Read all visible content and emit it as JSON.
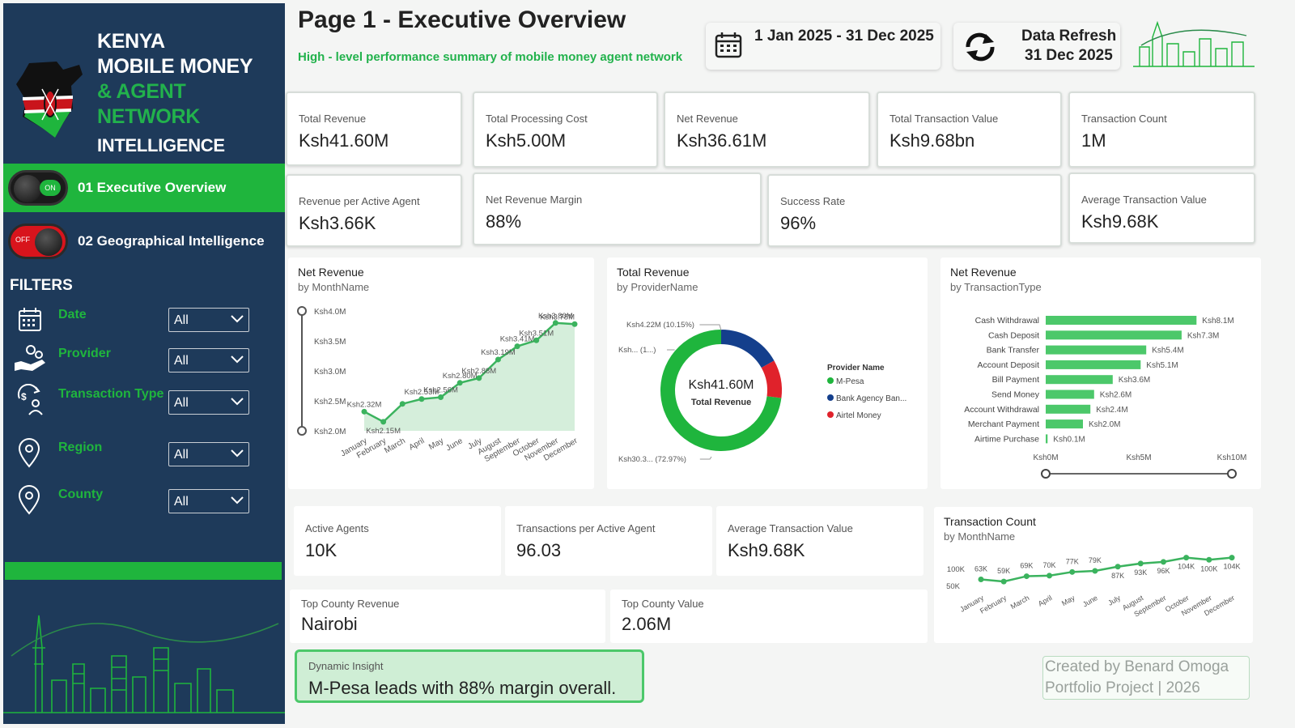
{
  "brand": {
    "line1": "KENYA",
    "line2": "MOBILE MONEY",
    "line3": "& AGENT NETWORK",
    "line4": "INTELLIGENCE"
  },
  "nav": [
    {
      "label": "01  Executive Overview",
      "state": "ON"
    },
    {
      "label": "02  Geographical Intelligence",
      "state": "OFF"
    }
  ],
  "filters": {
    "title": "FILTERS",
    "items": [
      {
        "name": "Date",
        "value": "All",
        "icon": "calendar-icon"
      },
      {
        "name": "Provider",
        "value": "All",
        "icon": "hand-coins-icon"
      },
      {
        "name": "Transaction Type",
        "value": "All",
        "icon": "exchange-person-icon"
      },
      {
        "name": "Region",
        "value": "All",
        "icon": "location-pin-icon"
      },
      {
        "name": "County",
        "value": "All",
        "icon": "location-pin-icon"
      }
    ]
  },
  "header": {
    "title": "Page 1 - Executive Overview",
    "subtitle": "High - level performance summary of mobile money agent network",
    "date_range": "1 Jan 2025 - 31 Dec 2025",
    "refresh_label": "Data Refresh",
    "refresh_date": "31 Dec 2025"
  },
  "kpis_row1": [
    {
      "label": "Total Revenue",
      "value": "Ksh41.60M"
    },
    {
      "label": "Total Processing Cost",
      "value": "Ksh5.00M"
    },
    {
      "label": "Net Revenue",
      "value": "Ksh36.61M"
    },
    {
      "label": "Total Transaction Value",
      "value": "Ksh9.68bn"
    },
    {
      "label": "Transaction Count",
      "value": "1M"
    }
  ],
  "kpis_row2": [
    {
      "label": "Revenue per Active Agent",
      "value": "Ksh3.66K"
    },
    {
      "label": "Net Revenue Margin",
      "value": "88%"
    },
    {
      "label": "Success Rate",
      "value": "96%"
    },
    {
      "label": "Average Transaction Value",
      "value": "Ksh9.68K"
    }
  ],
  "kpis_row3": [
    {
      "label": "Active Agents",
      "value": "10K"
    },
    {
      "label": "Transactions per Active Agent",
      "value": "96.03"
    },
    {
      "label": "Average Transaction Value",
      "value": "Ksh9.68K"
    }
  ],
  "kpis_row4": [
    {
      "label": "Top County Revenue",
      "value": "Nairobi"
    },
    {
      "label": "Top County Value",
      "value": "2.06M"
    }
  ],
  "insight": {
    "label": "Dynamic Insight",
    "text": "M-Pesa leads with 88% margin overall."
  },
  "credit": {
    "line1": "Created by Benard Omoga",
    "line2": "Portfolio Project | 2026"
  },
  "colors": {
    "green": "#1fb53d",
    "navy": "#1e3a5a",
    "blue": "#143f8c",
    "red": "#e0222b"
  },
  "chart_data": [
    {
      "type": "area",
      "title": "Net Revenue",
      "subtitle": "by MonthName",
      "categories": [
        "January",
        "February",
        "March",
        "April",
        "May",
        "June",
        "July",
        "August",
        "September",
        "October",
        "November",
        "December"
      ],
      "values": [
        2.32,
        2.15,
        2.45,
        2.53,
        2.56,
        2.8,
        2.88,
        3.19,
        3.41,
        3.51,
        3.8,
        3.78
      ],
      "value_labels": [
        "Ksh2.32M",
        "Ksh2.15M",
        "",
        "Ksh2.53M",
        "Ksh2.56M",
        "Ksh2.80M",
        "Ksh2.88M",
        "Ksh3.19M",
        "Ksh3.41M",
        "Ksh3.51M",
        "Ksh3.80M",
        "Ksh3.78M"
      ],
      "y_ticks": [
        "Ksh2.0M",
        "Ksh2.5M",
        "Ksh3.0M",
        "Ksh3.5M",
        "Ksh4.0M"
      ],
      "ylim": [
        2.0,
        4.0
      ]
    },
    {
      "type": "pie",
      "title": "Total Revenue",
      "subtitle": "by ProviderName",
      "center_value": "Ksh41.60M",
      "center_label": "Total Revenue",
      "legend_title": "Provider Name",
      "slices": [
        {
          "name": "M-Pesa",
          "value": 72.97,
          "label": "Ksh30.3... (72.97%)"
        },
        {
          "name": "Bank Agency Ban...",
          "value": 16.88,
          "label": "Ksh... (1...)"
        },
        {
          "name": "Airtel Money",
          "value": 10.15,
          "label": "Ksh4.22M (10.15%)"
        }
      ]
    },
    {
      "type": "bar",
      "title": "Net Revenue",
      "subtitle": "by TransactionType",
      "categories": [
        "Cash Withdrawal",
        "Cash Deposit",
        "Bank Transfer",
        "Account Deposit",
        "Bill Payment",
        "Send Money",
        "Account Withdrawal",
        "Merchant Payment",
        "Airtime Purchase"
      ],
      "values": [
        8.1,
        7.3,
        5.4,
        5.1,
        3.6,
        2.6,
        2.4,
        2.0,
        0.1
      ],
      "value_labels": [
        "Ksh8.1M",
        "Ksh7.3M",
        "Ksh5.4M",
        "Ksh5.1M",
        "Ksh3.6M",
        "Ksh2.6M",
        "Ksh2.4M",
        "Ksh2.0M",
        "Ksh0.1M"
      ],
      "x_ticks": [
        "Ksh0M",
        "Ksh5M",
        "Ksh10M"
      ],
      "xlim": [
        0,
        10
      ]
    },
    {
      "type": "line",
      "title": "Transaction Count",
      "subtitle": "by MonthName",
      "categories": [
        "January",
        "February",
        "March",
        "April",
        "May",
        "June",
        "July",
        "August",
        "September",
        "October",
        "November",
        "December"
      ],
      "values": [
        63,
        59,
        69,
        70,
        77,
        79,
        87,
        93,
        96,
        104,
        100,
        104
      ],
      "value_labels": [
        "63K",
        "59K",
        "69K",
        "70K",
        "77K",
        "79K",
        "87K",
        "93K",
        "96K",
        "104K",
        "100K",
        "104K"
      ],
      "y_ticks": [
        "50K",
        "100K"
      ],
      "ylim": [
        0,
        125
      ]
    }
  ]
}
